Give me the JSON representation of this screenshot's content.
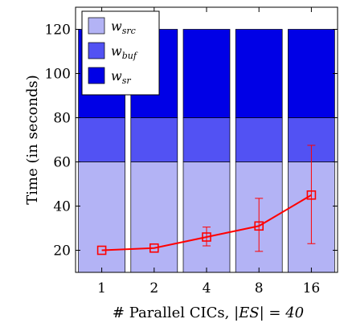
{
  "chart_data": {
    "type": "bar",
    "stacked": true,
    "categories": [
      "1",
      "2",
      "4",
      "8",
      "16"
    ],
    "series": [
      {
        "name": "w_src",
        "label_base": "w",
        "label_sub": "src",
        "values": [
          60,
          60,
          60,
          60,
          60
        ],
        "color": "#b3b3f5"
      },
      {
        "name": "w_buf",
        "label_base": "w",
        "label_sub": "buf",
        "values": [
          20,
          20,
          20,
          20,
          20
        ],
        "color": "#5252f3"
      },
      {
        "name": "w_sr",
        "label_base": "w",
        "label_sub": "sr",
        "values": [
          40,
          40,
          40,
          40,
          40
        ],
        "color": "#0000e6"
      }
    ],
    "line": {
      "values": [
        20,
        21,
        26,
        31,
        45
      ],
      "error_low": [
        20,
        21,
        22,
        19.5,
        23
      ],
      "error_high": [
        20,
        21,
        30.5,
        43.5,
        67.5
      ],
      "color": "#ff0000"
    },
    "xlabel": "# Parallel CICs, |ES| = 40",
    "xlabel_text": "# Parallel CICs, ",
    "xlabel_math": "|ES| = 40",
    "ylabel": "Time (in seconds)",
    "ylim": [
      10,
      130
    ],
    "yticks": [
      20,
      40,
      60,
      80,
      100,
      120
    ],
    "legend_position": "top-left",
    "grid": false
  }
}
